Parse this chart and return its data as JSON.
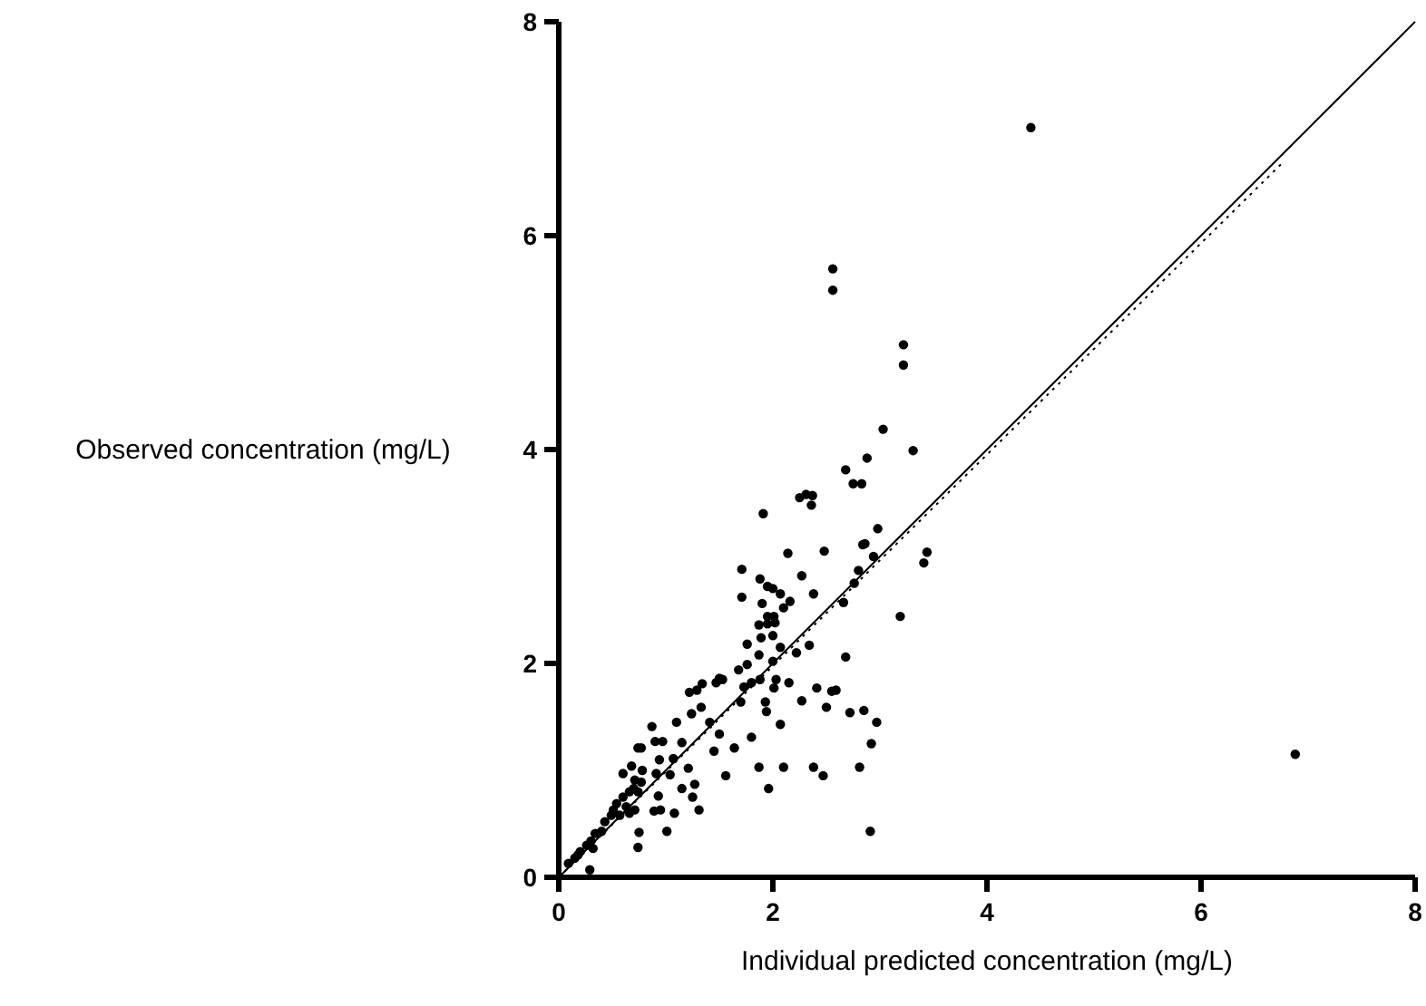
{
  "chart_data": {
    "type": "scatter",
    "xlabel": "Individual predicted concentration (mg/L)",
    "ylabel": "Observed concentration (mg/L)",
    "xlim": [
      0,
      8
    ],
    "ylim": [
      0,
      8
    ],
    "xticks": [
      0,
      2,
      4,
      6,
      8
    ],
    "yticks": [
      0,
      2,
      4,
      6,
      8
    ],
    "grid": false,
    "series": [
      {
        "color": "#000000",
        "marker": "circle",
        "x": [
          1.91,
          2.14,
          2.48,
          2.98,
          2.84,
          2.86,
          2.94,
          3.44,
          3.41,
          1.71,
          1.88,
          1.95,
          2.0,
          2.07,
          2.27,
          2.38,
          2.8,
          2.76,
          2.66,
          1.71,
          1.9,
          2.1,
          2.16,
          3.19,
          1.95,
          2.01,
          1.95,
          2.02,
          1.87,
          1.89,
          2.0,
          1.76,
          2.07,
          2.22,
          2.34,
          1.87,
          2.0,
          2.68,
          1.68,
          1.76,
          1.5,
          1.53,
          1.47,
          1.73,
          1.8,
          1.88,
          2.03,
          2.01,
          2.15,
          1.7,
          1.93,
          1.94,
          2.07,
          2.27,
          2.41,
          2.5,
          2.55,
          2.59,
          2.72,
          2.85,
          2.97,
          2.92,
          2.81,
          2.91,
          2.47,
          2.38,
          2.1,
          1.96,
          1.87,
          1.8,
          1.64,
          1.56,
          1.5,
          1.45,
          1.41,
          1.33,
          1.24,
          1.22,
          1.29,
          1.34,
          1.1,
          1.15,
          0.87,
          0.9,
          0.97,
          0.74,
          0.77,
          1.21,
          1.27,
          1.15,
          1.25,
          1.31,
          1.07,
          1.04,
          0.94,
          0.91,
          0.78,
          0.68,
          0.6,
          0.71,
          0.77,
          0.7,
          0.66,
          0.74,
          0.6,
          0.54,
          0.63,
          0.51,
          0.49,
          0.57,
          0.66,
          0.71,
          0.43,
          0.4,
          0.34,
          0.3,
          0.26,
          0.2,
          0.15,
          0.09,
          0.18,
          0.32,
          0.29,
          0.93,
          0.95,
          1.01,
          0.75,
          0.74,
          1.08,
          0.89,
          2.56,
          2.56,
          3.22,
          3.22,
          3.03,
          3.31,
          2.68,
          2.88,
          2.75,
          2.83,
          2.25,
          2.31,
          2.37,
          2.36,
          4.41,
          6.88
        ],
        "values": [
          3.4,
          3.03,
          3.05,
          3.26,
          3.11,
          3.12,
          3.0,
          3.04,
          2.94,
          2.88,
          2.79,
          2.72,
          2.7,
          2.65,
          2.82,
          2.65,
          2.87,
          2.75,
          2.57,
          2.62,
          2.56,
          2.52,
          2.58,
          2.44,
          2.44,
          2.44,
          2.37,
          2.38,
          2.36,
          2.24,
          2.26,
          2.18,
          2.15,
          2.1,
          2.17,
          2.08,
          2.02,
          2.06,
          1.94,
          1.99,
          1.86,
          1.85,
          1.82,
          1.78,
          1.82,
          1.85,
          1.85,
          1.77,
          1.82,
          1.64,
          1.64,
          1.55,
          1.43,
          1.65,
          1.77,
          1.59,
          1.74,
          1.75,
          1.54,
          1.56,
          1.45,
          1.25,
          1.03,
          0.43,
          0.95,
          1.03,
          1.03,
          0.83,
          1.03,
          1.31,
          1.21,
          0.95,
          1.34,
          1.18,
          1.45,
          1.59,
          1.53,
          1.73,
          1.75,
          1.81,
          1.45,
          1.26,
          1.41,
          1.27,
          1.27,
          1.21,
          1.21,
          1.02,
          0.87,
          0.83,
          0.75,
          0.63,
          1.11,
          0.96,
          1.1,
          0.97,
          1.0,
          1.04,
          0.97,
          0.91,
          0.89,
          0.83,
          0.8,
          0.8,
          0.75,
          0.69,
          0.66,
          0.63,
          0.58,
          0.58,
          0.6,
          0.63,
          0.52,
          0.43,
          0.41,
          0.34,
          0.3,
          0.24,
          0.18,
          0.13,
          0.21,
          0.27,
          0.07,
          0.76,
          0.63,
          0.43,
          0.42,
          0.28,
          0.6,
          0.62,
          5.69,
          5.49,
          4.98,
          4.79,
          4.19,
          3.99,
          3.81,
          3.92,
          3.68,
          3.68,
          3.55,
          3.58,
          3.57,
          3.48,
          7.01,
          1.15
        ]
      },
      {
        "type": "line",
        "color": "#000000",
        "line_style": "solid",
        "marker": "none",
        "x": [
          0,
          8
        ],
        "values": [
          0,
          8
        ]
      },
      {
        "type": "line",
        "color": "#000000",
        "line_style": "dotted",
        "marker": "none",
        "x": [
          0,
          6.76
        ],
        "values": [
          0,
          6.68
        ]
      }
    ]
  }
}
